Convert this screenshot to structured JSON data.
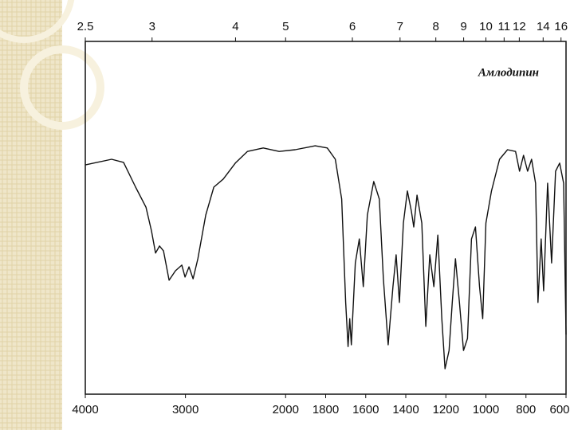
{
  "chart_data": {
    "type": "line",
    "title": "Амлодипин",
    "x": [
      4000,
      3737,
      3618,
      3498,
      3394,
      3339,
      3299,
      3259,
      3219,
      3163,
      3100,
      3036,
      3004,
      2964,
      2924,
      2876,
      2797,
      2717,
      2622,
      2502,
      2382,
      2223,
      2064,
      1952,
      1852,
      1792,
      1752,
      1720,
      1700,
      1688,
      1680,
      1672,
      1652,
      1632,
      1612,
      1592,
      1560,
      1532,
      1512,
      1488,
      1464,
      1448,
      1432,
      1412,
      1392,
      1372,
      1360,
      1344,
      1320,
      1300,
      1280,
      1260,
      1240,
      1220,
      1204,
      1184,
      1168,
      1152,
      1132,
      1112,
      1092,
      1072,
      1052,
      1032,
      1016,
      1000,
      972,
      932,
      892,
      852,
      832,
      812,
      792,
      772,
      752,
      740,
      724,
      712,
      692,
      672,
      652,
      632,
      612,
      600
    ],
    "values": [
      65,
      66.6,
      65.7,
      58.7,
      53,
      46.3,
      40,
      42,
      40.6,
      32.3,
      35,
      36.6,
      33.2,
      36.1,
      32.7,
      38.4,
      50.8,
      58.7,
      61,
      65.5,
      68.8,
      69.8,
      68.8,
      69.3,
      70.4,
      69.8,
      66.6,
      55.3,
      26,
      13.5,
      21.4,
      14,
      37.2,
      44,
      30.5,
      50.8,
      60.3,
      55.3,
      32.7,
      14,
      30.5,
      39.5,
      26,
      48.5,
      57.6,
      51.9,
      47.4,
      56.4,
      48.5,
      19.2,
      39.5,
      30.5,
      45.1,
      21.4,
      7.2,
      12.4,
      26,
      38.4,
      26,
      12.4,
      15.8,
      44,
      47.4,
      30.5,
      21.4,
      48.5,
      57.6,
      66.6,
      69.3,
      68.8,
      63.2,
      67.7,
      63.2,
      66.6,
      59.8,
      26,
      44,
      29.3,
      59.8,
      37.2,
      63.2,
      65.5,
      59.8,
      16.9
    ],
    "color": "#111111",
    "xlim": [
      4000,
      600
    ],
    "x_scale_break": 2000,
    "xticks": [
      4000,
      3000,
      2000,
      1800,
      1600,
      1400,
      1200,
      1000,
      800,
      600
    ],
    "top_xticks": [
      2.5,
      3,
      4,
      5,
      6,
      7,
      8,
      9,
      10,
      11,
      12,
      14,
      16
    ],
    "ylim": [
      0,
      100
    ]
  }
}
